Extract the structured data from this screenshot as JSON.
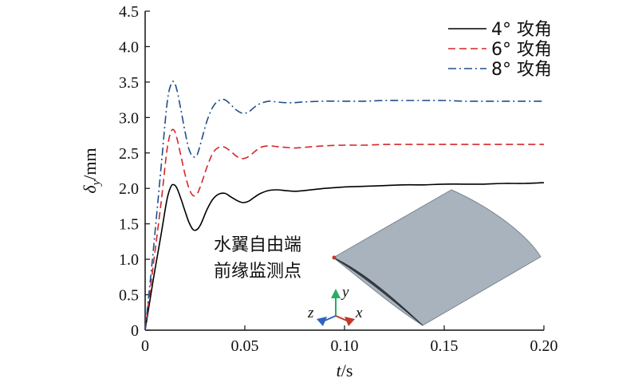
{
  "chart_data": {
    "type": "line",
    "xlabel_var": "t",
    "xlabel_unit": "/s",
    "ylabel_var": "δ",
    "ylabel_sub": "y",
    "ylabel_unit": "/mm",
    "xlim": [
      0,
      0.2
    ],
    "ylim": [
      0,
      4.5
    ],
    "xticks": [
      "0",
      "0.05",
      "0.10",
      "0.15",
      "0.20"
    ],
    "xtick_values": [
      0,
      0.05,
      0.1,
      0.15,
      0.2
    ],
    "yticks": [
      "0",
      "0.5",
      "1.0",
      "1.5",
      "2.0",
      "2.5",
      "3.0",
      "3.5",
      "4.0",
      "4.5"
    ],
    "ytick_values": [
      0,
      0.5,
      1.0,
      1.5,
      2.0,
      2.5,
      3.0,
      3.5,
      4.0,
      4.5
    ],
    "legend_position": "top-right",
    "grid": false,
    "series": [
      {
        "name": "4° 攻角",
        "color": "#000000",
        "dash": "solid",
        "x": [
          0,
          0.004,
          0.008,
          0.011,
          0.013,
          0.0145,
          0.016,
          0.018,
          0.02,
          0.022,
          0.024,
          0.026,
          0.028,
          0.031,
          0.034,
          0.037,
          0.04,
          0.043,
          0.046,
          0.049,
          0.052,
          0.055,
          0.058,
          0.062,
          0.066,
          0.07,
          0.075,
          0.08,
          0.09,
          0.1,
          0.11,
          0.12,
          0.13,
          0.14,
          0.15,
          0.16,
          0.17,
          0.18,
          0.19,
          0.2
        ],
        "y": [
          0,
          0.7,
          1.35,
          1.85,
          2.03,
          2.05,
          2.0,
          1.85,
          1.68,
          1.52,
          1.42,
          1.42,
          1.5,
          1.7,
          1.85,
          1.92,
          1.93,
          1.88,
          1.83,
          1.8,
          1.82,
          1.88,
          1.93,
          1.97,
          1.98,
          1.97,
          1.96,
          1.97,
          2.0,
          2.02,
          2.03,
          2.04,
          2.05,
          2.05,
          2.06,
          2.06,
          2.06,
          2.07,
          2.07,
          2.08
        ]
      },
      {
        "name": "6° 攻角",
        "color": "#d62728",
        "dash": "dashed",
        "x": [
          0,
          0.004,
          0.008,
          0.011,
          0.013,
          0.0145,
          0.016,
          0.018,
          0.02,
          0.022,
          0.024,
          0.026,
          0.028,
          0.031,
          0.034,
          0.037,
          0.04,
          0.043,
          0.046,
          0.049,
          0.052,
          0.055,
          0.058,
          0.062,
          0.066,
          0.07,
          0.075,
          0.08,
          0.09,
          0.1,
          0.11,
          0.12,
          0.13,
          0.14,
          0.15,
          0.16,
          0.17,
          0.18,
          0.19,
          0.2
        ],
        "y": [
          0,
          0.9,
          1.8,
          2.55,
          2.8,
          2.82,
          2.7,
          2.45,
          2.2,
          2.0,
          1.9,
          1.92,
          2.05,
          2.3,
          2.5,
          2.58,
          2.58,
          2.52,
          2.45,
          2.42,
          2.45,
          2.52,
          2.58,
          2.6,
          2.59,
          2.58,
          2.57,
          2.58,
          2.6,
          2.61,
          2.61,
          2.62,
          2.62,
          2.62,
          2.62,
          2.62,
          2.62,
          2.62,
          2.62,
          2.62
        ]
      },
      {
        "name": "8° 攻角",
        "color": "#1f4e8c",
        "dash": "dashdot",
        "x": [
          0,
          0.004,
          0.008,
          0.011,
          0.013,
          0.0145,
          0.016,
          0.018,
          0.02,
          0.022,
          0.024,
          0.026,
          0.028,
          0.031,
          0.034,
          0.037,
          0.04,
          0.043,
          0.046,
          0.049,
          0.052,
          0.055,
          0.058,
          0.062,
          0.066,
          0.07,
          0.075,
          0.08,
          0.09,
          0.1,
          0.11,
          0.12,
          0.13,
          0.14,
          0.15,
          0.16,
          0.17,
          0.18,
          0.19,
          0.2
        ],
        "y": [
          0,
          1.1,
          2.3,
          3.2,
          3.47,
          3.5,
          3.38,
          3.1,
          2.8,
          2.55,
          2.45,
          2.47,
          2.65,
          2.95,
          3.15,
          3.24,
          3.25,
          3.18,
          3.1,
          3.06,
          3.08,
          3.15,
          3.2,
          3.23,
          3.22,
          3.21,
          3.21,
          3.22,
          3.23,
          3.23,
          3.23,
          3.24,
          3.24,
          3.24,
          3.24,
          3.23,
          3.23,
          3.23,
          3.23,
          3.23
        ]
      }
    ],
    "annotation_lines": [
      "水翼自由端",
      "前缘监测点"
    ],
    "axis_triad": {
      "x_label": "x",
      "y_label": "y",
      "z_label": "z",
      "x_color": "#c0392b",
      "y_color": "#27ae60",
      "z_color": "#2e64c0"
    },
    "hydrofoil_color": "#a9b3bd"
  }
}
